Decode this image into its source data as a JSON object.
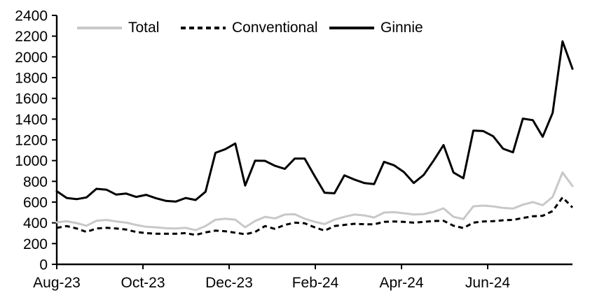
{
  "chart_data": {
    "type": "line",
    "title": "",
    "xlabel": "",
    "ylabel": "",
    "ylim": [
      0,
      2400
    ],
    "y_ticks": [
      0,
      200,
      400,
      600,
      800,
      1000,
      1200,
      1400,
      1600,
      1800,
      2000,
      2200,
      2400
    ],
    "x_tick_labels": [
      "Aug-23",
      "Oct-23",
      "Dec-23",
      "Feb-24",
      "Apr-24",
      "Jun-24"
    ],
    "x_unit": "weekly observations, Aug-2023 through Aug-2024",
    "grid": "off",
    "legend_position": "top",
    "axis_color": "#000000",
    "series": [
      {
        "name": "Total",
        "color": "#c8c8c8",
        "style": "solid",
        "values": [
          405,
          415,
          398,
          372,
          420,
          428,
          413,
          402,
          380,
          362,
          357,
          348,
          346,
          352,
          330,
          369,
          430,
          440,
          431,
          357,
          418,
          458,
          443,
          480,
          483,
          440,
          410,
          388,
          431,
          458,
          480,
          472,
          452,
          499,
          503,
          492,
          481,
          485,
          505,
          540,
          458,
          436,
          559,
          566,
          559,
          544,
          537,
          575,
          600,
          570,
          650,
          885,
          755
        ]
      },
      {
        "name": "Conventional",
        "color": "#000000",
        "style": "dashed",
        "values": [
          352,
          369,
          346,
          312,
          346,
          352,
          346,
          335,
          312,
          301,
          295,
          295,
          295,
          301,
          283,
          308,
          325,
          319,
          305,
          290,
          312,
          369,
          342,
          380,
          402,
          396,
          357,
          325,
          369,
          380,
          391,
          386,
          386,
          409,
          413,
          409,
          402,
          409,
          418,
          420,
          372,
          350,
          402,
          413,
          416,
          425,
          428,
          447,
          463,
          468,
          514,
          645,
          548
        ]
      },
      {
        "name": "Ginnie",
        "color": "#000000",
        "style": "solid",
        "values": [
          705,
          640,
          628,
          645,
          728,
          720,
          672,
          682,
          650,
          670,
          638,
          612,
          605,
          640,
          620,
          700,
          1075,
          1110,
          1165,
          760,
          1000,
          998,
          950,
          920,
          1020,
          1020,
          852,
          690,
          685,
          858,
          818,
          784,
          773,
          988,
          955,
          890,
          784,
          862,
          1000,
          1150,
          885,
          830,
          1290,
          1285,
          1235,
          1115,
          1080,
          1405,
          1390,
          1230,
          1460,
          2150,
          1885
        ]
      }
    ]
  }
}
